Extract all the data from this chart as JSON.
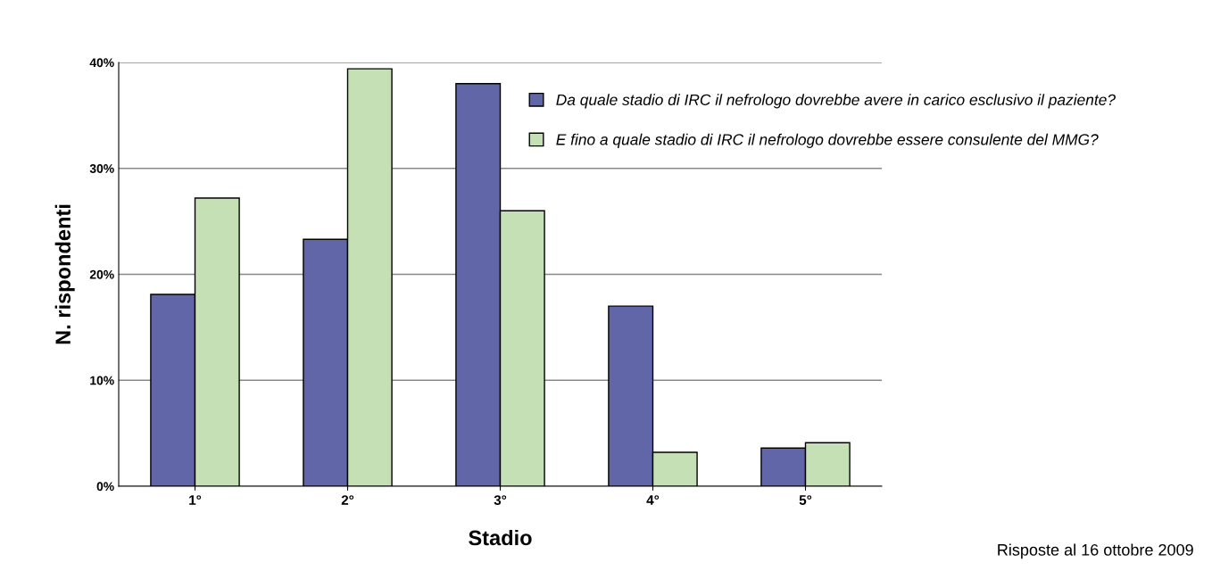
{
  "chart_data": {
    "type": "bar",
    "xlabel": "Stadio",
    "ylabel": "N. rispondenti",
    "categories": [
      "1°",
      "2°",
      "3°",
      "4°",
      "5°"
    ],
    "series": [
      {
        "name": "Da quale stadio di IRC il nefrologo dovrebbe avere in carico esclusivo il paziente?",
        "color": "#6166a8",
        "values": [
          18.1,
          23.3,
          38.0,
          17.0,
          3.6
        ]
      },
      {
        "name": "E fino a quale stadio di IRC il nefrologo dovrebbe essere consulente del MMG?",
        "color": "#c5e0b4",
        "values": [
          27.2,
          39.4,
          26.0,
          3.2,
          4.1
        ]
      }
    ],
    "ylim": [
      0,
      40
    ],
    "yticks": [
      {
        "value": 0,
        "label": "0%"
      },
      {
        "value": 10,
        "label": "10%"
      },
      {
        "value": 20,
        "label": "20%"
      },
      {
        "value": 30,
        "label": "30%"
      },
      {
        "value": 40,
        "label": "40%"
      }
    ],
    "grid": "y",
    "legend": "top right",
    "annotations": [
      "Risposte al 16 ottobre 2009"
    ]
  }
}
